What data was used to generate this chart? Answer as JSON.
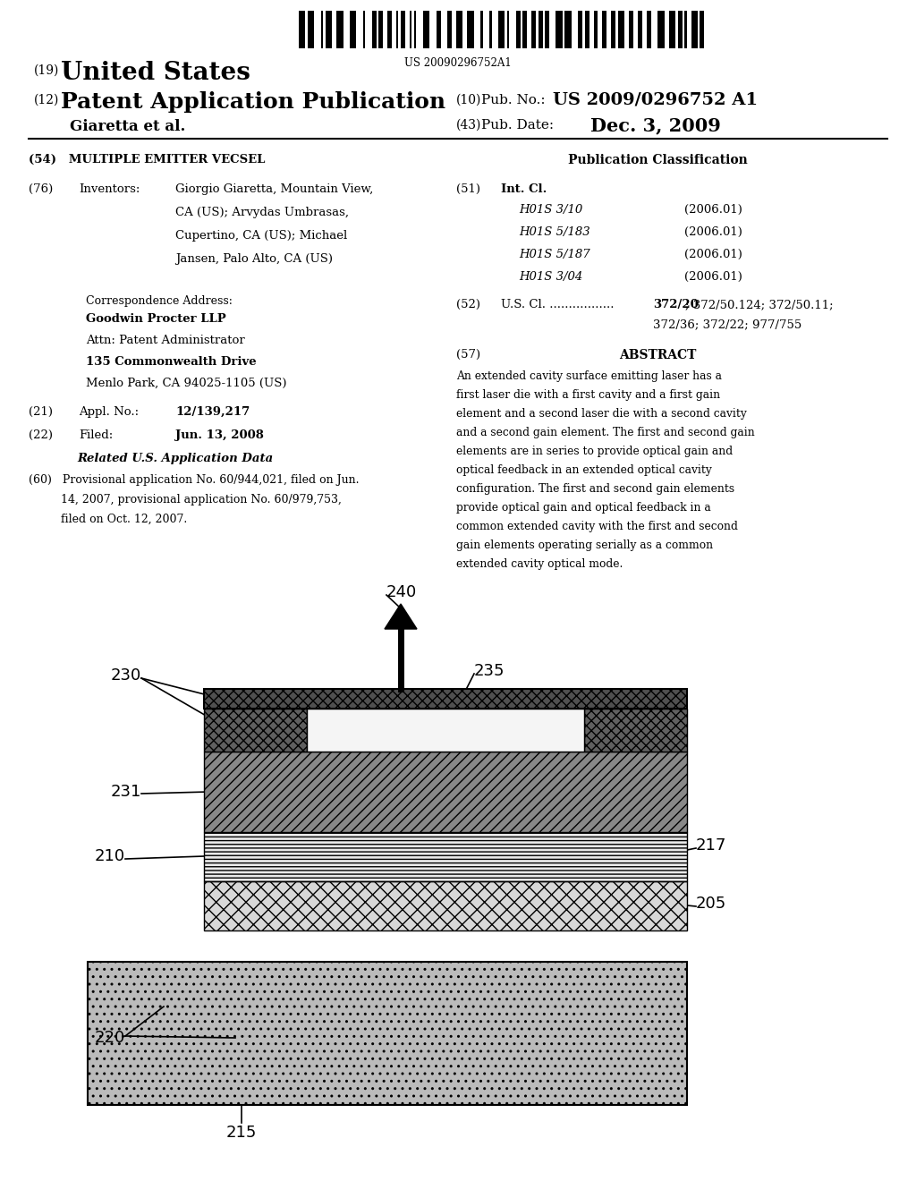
{
  "barcode_text": "US 20090296752A1",
  "title_19": "United States",
  "title_12": "Patent Application Publication",
  "pub_no_label": "Pub. No.:",
  "pub_no": "US 2009/0296752 A1",
  "author": "Giaretta et al.",
  "pub_date_label": "Pub. Date:",
  "pub_date": "Dec. 3, 2009",
  "section_54": "(54)   MULTIPLE EMITTER VECSEL",
  "section_76_lines": [
    "(76)   Inventors:    Giorgio Giaretta, Mountain View,",
    "                              CA (US); Arvydas Umbrasas,",
    "                              Cupertino, CA (US); Michael",
    "                              Jansen, Palo Alto, CA (US)"
  ],
  "corr_label": "Correspondence Address:",
  "corr_lines": [
    "Goodwin Procter LLP",
    "Attn: Patent Administrator",
    "135 Commonwealth Drive",
    "Menlo Park, CA 94025-1105 (US)"
  ],
  "section_21_value": "12/139,217",
  "section_22_value": "Jun. 13, 2008",
  "related_header": "Related U.S. Application Data",
  "section_60_text": "(60)   Provisional application No. 60/944,021, filed on Jun.\n         14, 2007, provisional application No. 60/979,753,\n         filed on Oct. 12, 2007.",
  "pub_class_header": "Publication Classification",
  "int_cl_items": [
    [
      "H01S 3/10",
      "(2006.01)"
    ],
    [
      "H01S 5/183",
      "(2006.01)"
    ],
    [
      "H01S 5/187",
      "(2006.01)"
    ],
    [
      "H01S 3/04",
      "(2006.01)"
    ]
  ],
  "section_52_value_bold": "372/20",
  "section_52_value_rest": "; 372/50.124; 372/50.11;\n372/36; 372/22; 977/755",
  "abstract_text": "An extended cavity surface emitting laser has a first laser die with a first cavity and a first gain element and a second laser die with a second cavity and a second gain element. The first and second gain elements are in series to provide optical gain and optical feedback in an extended optical cavity configuration. The first and second gain elements provide optical gain and optical feedback in a common extended cavity with the first and second gain elements operating serially as a common extended cavity optical mode.",
  "bg_color": "#ffffff"
}
